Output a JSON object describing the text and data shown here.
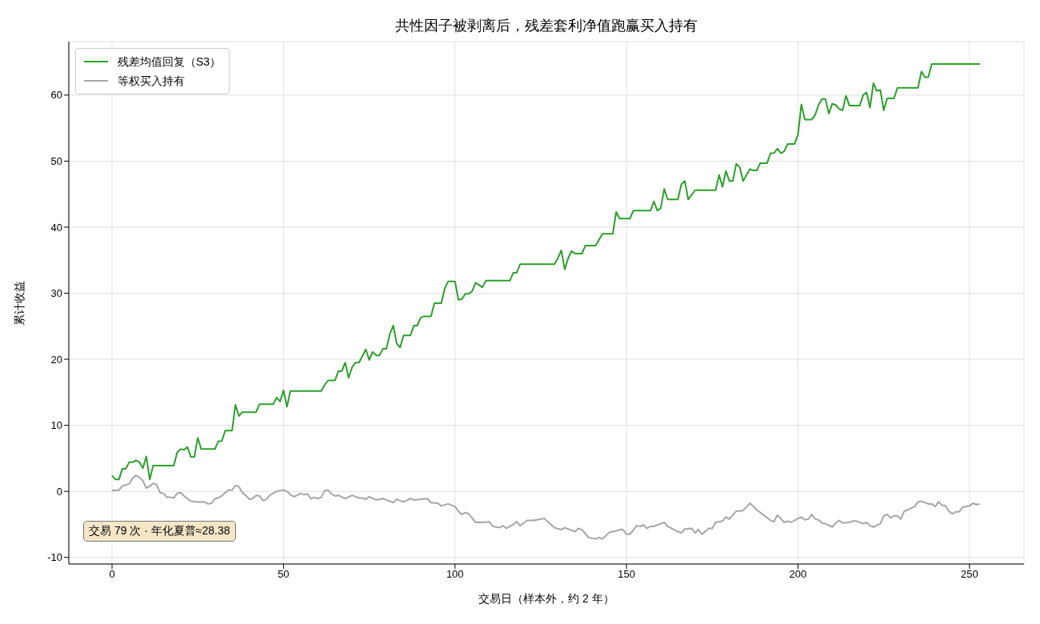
{
  "chart_data": {
    "type": "line",
    "title": "共性因子被剥离后，残差套利净值跑赢买入持有",
    "xlabel": "交易日（样本外，约 2 年）",
    "ylabel": "累计收益",
    "annotations": [
      "交易 79 次 · 年化夏普≈28.38"
    ],
    "xlim": [
      -12.6,
      265.9
    ],
    "xticks": [
      0,
      50,
      100,
      150,
      200,
      250
    ],
    "ylim": [
      -11,
      68.1
    ],
    "yticks": [
      -10,
      0,
      10,
      20,
      30,
      40,
      50,
      60
    ],
    "grid": true,
    "legend": "top left",
    "marker": "none",
    "line_style": "solid",
    "series": [
      {
        "name": "残差均值回复（S3）",
        "color": "#2ca02c",
        "x": [
          0,
          1,
          2,
          3,
          4,
          5,
          6,
          7,
          8,
          9,
          10,
          11,
          12,
          18,
          19,
          20,
          21,
          22,
          23,
          24,
          25,
          26,
          30,
          31,
          32,
          33,
          35,
          36,
          37,
          38,
          42,
          43,
          47,
          48,
          49,
          50,
          51,
          52,
          61,
          62,
          63,
          65,
          66,
          67,
          68,
          69,
          70,
          71,
          72,
          74,
          75,
          76,
          77,
          78,
          79,
          80,
          81,
          82,
          83,
          84,
          85,
          87,
          88,
          89,
          90,
          91,
          93,
          94,
          96,
          97,
          98,
          100,
          101,
          102,
          103,
          104,
          105,
          106,
          108,
          109,
          116,
          117,
          118,
          119,
          129,
          130,
          131,
          132,
          133,
          134,
          135,
          137,
          138,
          141,
          143,
          146,
          147,
          148,
          151,
          152,
          157,
          158,
          159,
          160,
          161,
          162,
          165,
          166,
          167,
          168,
          170,
          176,
          177,
          178,
          179,
          180,
          181,
          182,
          183,
          184,
          186,
          187,
          188,
          189,
          191,
          192,
          193,
          194,
          195,
          196,
          197,
          199,
          200,
          201,
          202,
          204,
          205,
          206,
          207,
          208,
          209,
          210,
          211,
          212,
          213,
          214,
          215,
          218,
          219,
          220,
          221,
          222,
          223,
          224,
          225,
          226,
          228,
          229,
          235,
          236,
          237,
          238,
          239,
          253
        ],
        "values": [
          2.4,
          1.8,
          1.8,
          3.4,
          3.4,
          4.4,
          4.4,
          4.7,
          4.4,
          3.5,
          5.3,
          1.8,
          3.9,
          3.9,
          5.9,
          6.4,
          6.3,
          6.7,
          5.2,
          5.2,
          8.1,
          6.4,
          6.4,
          7.6,
          7.6,
          9.2,
          9.2,
          13.1,
          11.4,
          12.0,
          12.0,
          13.2,
          13.2,
          14.2,
          13.6,
          15.3,
          12.8,
          15.2,
          15.2,
          16.1,
          16.8,
          16.8,
          18.2,
          18.2,
          19.5,
          17.2,
          18.8,
          19.5,
          19.5,
          21.5,
          19.9,
          21.1,
          20.6,
          20.6,
          21.6,
          21.6,
          23.8,
          25.1,
          22.4,
          21.8,
          23.6,
          23.6,
          25.1,
          25.1,
          26.3,
          26.5,
          26.5,
          28.5,
          28.5,
          30.7,
          31.8,
          31.8,
          29.0,
          29.1,
          29.9,
          29.9,
          30.3,
          31.6,
          30.9,
          31.9,
          31.9,
          33.1,
          33.1,
          34.4,
          34.4,
          35.3,
          36.5,
          33.6,
          35.3,
          36.4,
          36.0,
          36.0,
          37.2,
          37.2,
          39.0,
          39.0,
          42.3,
          41.3,
          41.3,
          42.5,
          42.5,
          43.9,
          42.5,
          42.9,
          45.8,
          44.2,
          44.2,
          46.5,
          47.0,
          44.2,
          45.6,
          45.6,
          47.9,
          46.1,
          48.5,
          47.0,
          47.0,
          49.6,
          49.1,
          47.0,
          48.8,
          48.6,
          48.6,
          49.7,
          49.7,
          51.2,
          51.2,
          51.9,
          51.2,
          51.5,
          52.6,
          52.6,
          54.0,
          58.6,
          56.3,
          56.3,
          57.0,
          58.5,
          59.4,
          59.4,
          57.2,
          58.7,
          58.5,
          57.9,
          57.7,
          59.9,
          58.4,
          58.4,
          60.0,
          60.4,
          58.1,
          61.8,
          60.6,
          60.8,
          57.7,
          59.5,
          59.5,
          61.1,
          61.1,
          63.6,
          62.7,
          62.7,
          64.7,
          64.7
        ]
      },
      {
        "name": "等权买入持有",
        "color": "#a6a6a6",
        "x": [
          0,
          2,
          3,
          4,
          5,
          6,
          7,
          8,
          9,
          10,
          11,
          12,
          13,
          14,
          15,
          16,
          17,
          18,
          19,
          20,
          21,
          23,
          25,
          27,
          28,
          29,
          30,
          31,
          32,
          33,
          34,
          35,
          36,
          37,
          38,
          39,
          40,
          41,
          42,
          43,
          44,
          45,
          46,
          47,
          48,
          49,
          50,
          51,
          52,
          53,
          54,
          55,
          56,
          57,
          58,
          59,
          60,
          61,
          62,
          63,
          64,
          65,
          66,
          68,
          70,
          72,
          73,
          74,
          75,
          77,
          79,
          82,
          83,
          85,
          87,
          88,
          92,
          93,
          95,
          96,
          98,
          100,
          101,
          102,
          103,
          104,
          106,
          108,
          110,
          111,
          113,
          114,
          115,
          117,
          118,
          119,
          121,
          123,
          126,
          129,
          131,
          132,
          135,
          136,
          137,
          139,
          141,
          142,
          143,
          145,
          147,
          148,
          149,
          150,
          151,
          153,
          154,
          155,
          156,
          157,
          158,
          161,
          162,
          165,
          166,
          167,
          169,
          170,
          171,
          172,
          174,
          175,
          176,
          178,
          179,
          180,
          182,
          184,
          186,
          188,
          189,
          192,
          193,
          194,
          196,
          197,
          198,
          200,
          201,
          202,
          203,
          204,
          205,
          206,
          207,
          208,
          210,
          211,
          212,
          213,
          215,
          216,
          217,
          219,
          220,
          221,
          222,
          224,
          225,
          226,
          227,
          228,
          229,
          230,
          231,
          232,
          234,
          235,
          236,
          238,
          239,
          240,
          241,
          242,
          243,
          244,
          245,
          246,
          247,
          248,
          249,
          250,
          251,
          252,
          253
        ],
        "values": [
          0.1,
          0.2,
          0.8,
          1.0,
          1.1,
          2.0,
          2.4,
          2.1,
          1.6,
          0.5,
          0.8,
          1.2,
          1.0,
          -0.2,
          -0.3,
          -0.9,
          -0.9,
          -1.0,
          -0.3,
          -0.2,
          -0.7,
          -1.5,
          -1.6,
          -1.6,
          -1.9,
          -1.8,
          -1.1,
          -1.0,
          -0.7,
          -0.2,
          0.2,
          0.2,
          0.9,
          0.7,
          -0.2,
          -0.6,
          -1.2,
          -1.1,
          -0.6,
          -0.7,
          -1.4,
          -1.2,
          -0.6,
          -0.3,
          0.0,
          0.1,
          0.2,
          0.0,
          -0.5,
          -0.8,
          -0.6,
          -0.3,
          -0.5,
          -0.4,
          -1.1,
          -0.9,
          -1.1,
          -0.9,
          0.1,
          0.2,
          -0.4,
          -0.7,
          -0.6,
          -1.1,
          -0.6,
          -1.0,
          -1.0,
          -1.2,
          -0.8,
          -1.3,
          -1.1,
          -1.7,
          -1.2,
          -1.6,
          -1.1,
          -1.3,
          -1.1,
          -1.7,
          -1.8,
          -2.2,
          -1.9,
          -2.3,
          -3.0,
          -3.5,
          -3.2,
          -3.4,
          -4.7,
          -4.7,
          -4.6,
          -5.3,
          -5.5,
          -5.2,
          -5.6,
          -5.0,
          -4.6,
          -5.2,
          -4.4,
          -4.4,
          -4.1,
          -5.5,
          -5.8,
          -5.5,
          -6.1,
          -5.6,
          -5.8,
          -7.0,
          -7.2,
          -7.0,
          -7.2,
          -6.2,
          -6.0,
          -5.8,
          -5.8,
          -6.5,
          -6.5,
          -5.2,
          -5.3,
          -5.1,
          -5.6,
          -5.3,
          -5.3,
          -4.7,
          -5.3,
          -6.1,
          -6.3,
          -5.7,
          -5.6,
          -6.3,
          -5.8,
          -6.5,
          -5.6,
          -5.6,
          -4.7,
          -4.5,
          -3.9,
          -4.2,
          -3.0,
          -2.9,
          -1.8,
          -2.8,
          -3.2,
          -4.4,
          -4.6,
          -3.6,
          -4.7,
          -4.5,
          -4.7,
          -4.1,
          -3.9,
          -4.3,
          -4.2,
          -3.5,
          -4.2,
          -4.3,
          -4.8,
          -4.9,
          -5.4,
          -4.8,
          -4.4,
          -4.8,
          -4.7,
          -4.5,
          -4.5,
          -4.9,
          -4.7,
          -5.2,
          -5.4,
          -4.9,
          -3.7,
          -3.5,
          -4.0,
          -3.7,
          -3.7,
          -4.2,
          -3.0,
          -2.8,
          -2.3,
          -1.6,
          -1.5,
          -1.9,
          -1.9,
          -2.3,
          -1.6,
          -2.1,
          -2.2,
          -3.0,
          -3.4,
          -3.1,
          -3.1,
          -2.4,
          -2.3,
          -2.2,
          -1.8,
          -2.0,
          -1.9
        ]
      }
    ]
  }
}
